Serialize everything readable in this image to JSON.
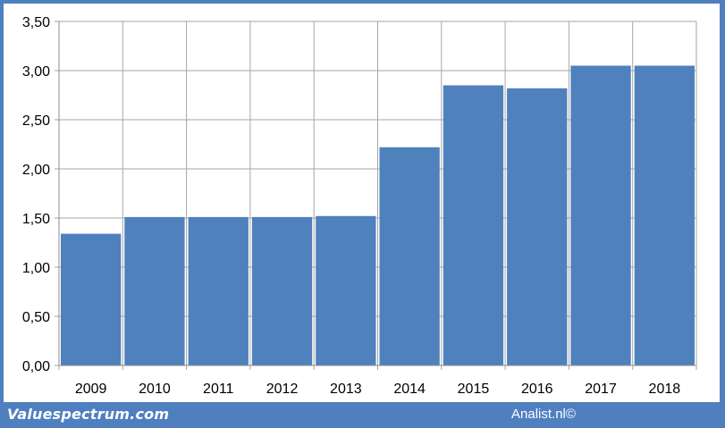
{
  "footer": {
    "brand": "Valuespectrum.com",
    "credit": "Analist.nl©"
  },
  "colors": {
    "bar": "#4f81bd",
    "frame": "#4f7fbf",
    "grid": "#a6a6a6"
  },
  "chart_data": {
    "type": "bar",
    "categories": [
      "2009",
      "2010",
      "2011",
      "2012",
      "2013",
      "2014",
      "2015",
      "2016",
      "2017",
      "2018"
    ],
    "values": [
      1.34,
      1.51,
      1.51,
      1.51,
      1.52,
      2.22,
      2.85,
      2.82,
      3.05,
      3.05
    ],
    "y_ticks": [
      "0,00",
      "0,50",
      "1,00",
      "1,50",
      "2,00",
      "2,50",
      "3,00",
      "3,50"
    ],
    "ylim": [
      0,
      3.5
    ],
    "grid": true,
    "legend": "none"
  }
}
